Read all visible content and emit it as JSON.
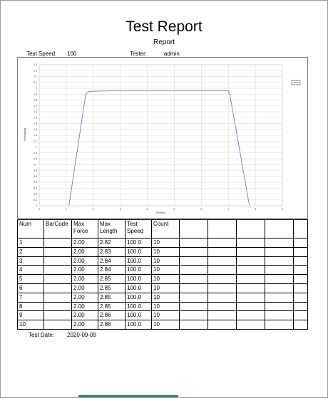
{
  "report": {
    "title": "Test Report",
    "subtitle": "Report",
    "test_speed_label": "Test Speed:",
    "test_speed_value": "100",
    "tester_label": "Tester:",
    "tester_value": "admin",
    "test_date_label": "Test Date:",
    "test_date_value": "2020-09-09"
  },
  "chart_data": {
    "type": "line",
    "title": "",
    "xlabel": "Time(s)",
    "ylabel": "Force(kgf)",
    "xlim": [
      0,
      9
    ],
    "ylim": [
      0,
      2.4
    ],
    "x_ticks": [
      "0",
      "1",
      "2",
      "3",
      "4",
      "5",
      "6",
      "7",
      "8",
      "9"
    ],
    "y_ticks": [
      "0",
      "0.1",
      "0.2",
      "0.3",
      "0.4",
      "0.5",
      "0.6",
      "0.7",
      "0.8",
      "0.9",
      "1",
      "1.1",
      "1.2",
      "1.3",
      "1.4",
      "1.5",
      "1.6",
      "1.7",
      "1.8",
      "1.9",
      "2",
      "2.1",
      "2.2",
      "2.3",
      "2.4"
    ],
    "grid": true,
    "legend": "top-right",
    "series": [
      {
        "color": "#6a7fd6",
        "x": [
          1.1,
          1.72,
          1.8,
          2.0,
          3.0,
          4.0,
          5.0,
          6.0,
          7.0,
          7.05,
          7.4,
          7.78
        ],
        "y": [
          0.0,
          1.9,
          1.94,
          1.95,
          1.96,
          1.96,
          1.96,
          1.96,
          1.96,
          1.9,
          1.0,
          0.0
        ]
      }
    ]
  },
  "table": {
    "columns": [
      "Num",
      "BarCode",
      "Max Force",
      "Max Length",
      "Test Speed",
      "Count",
      "",
      "",
      "",
      "",
      ""
    ],
    "rows": [
      [
        "1",
        "",
        "2.00",
        "2.82",
        "100.0",
        "10",
        "",
        "",
        "",
        "",
        ""
      ],
      [
        "2",
        "",
        "2.00",
        "2.83",
        "100.0",
        "10",
        "",
        "",
        "",
        "",
        ""
      ],
      [
        "3",
        "",
        "2.00",
        "2.84",
        "100.0",
        "10",
        "",
        "",
        "",
        "",
        ""
      ],
      [
        "4",
        "",
        "2.00",
        "2.84",
        "100.0",
        "10",
        "",
        "",
        "",
        "",
        ""
      ],
      [
        "5",
        "",
        "2.00",
        "2.85",
        "100.0",
        "10",
        "",
        "",
        "",
        "",
        ""
      ],
      [
        "6",
        "",
        "2.00",
        "2.85",
        "100.0",
        "10",
        "",
        "",
        "",
        "",
        ""
      ],
      [
        "7",
        "",
        "2.00",
        "2.85",
        "100.0",
        "10",
        "",
        "",
        "",
        "",
        ""
      ],
      [
        "8",
        "",
        "2.00",
        "2.85",
        "100.0",
        "10",
        "",
        "",
        "",
        "",
        ""
      ],
      [
        "9",
        "",
        "2.00",
        "2.86",
        "100.0",
        "10",
        "",
        "",
        "",
        "",
        ""
      ],
      [
        "10",
        "",
        "2.00",
        "2.86",
        "100.0",
        "10",
        "",
        "",
        "",
        "",
        ""
      ]
    ]
  }
}
